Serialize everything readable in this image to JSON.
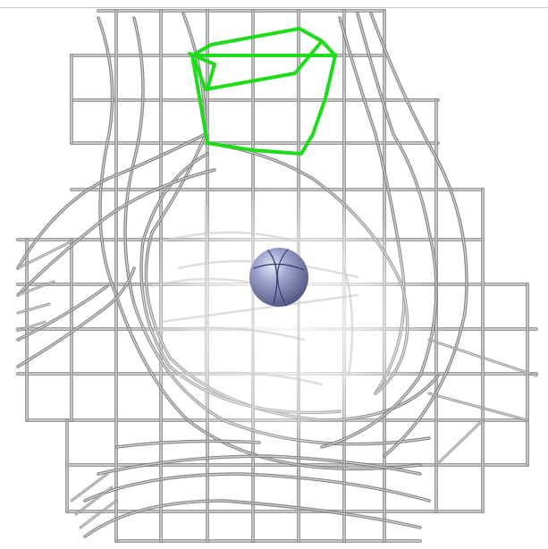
{
  "scene": {
    "kind": "molecular-surface-mesh-render",
    "background_color": "#ffffff",
    "mesh_color": "#8c8c8c",
    "mesh_highlight_color": "#dcdcdc",
    "fragment_color": "#22e61e",
    "atom_color": "#7f86b8"
  }
}
